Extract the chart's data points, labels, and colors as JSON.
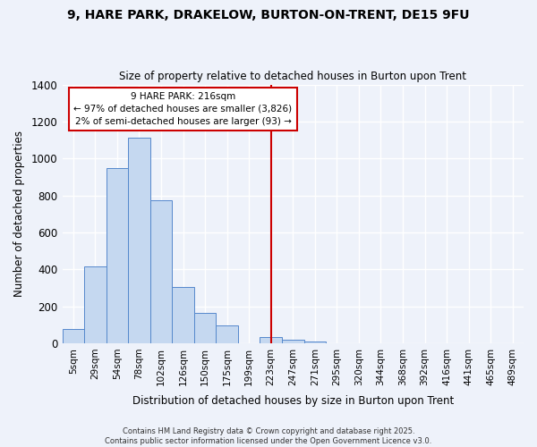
{
  "title_line1": "9, HARE PARK, DRAKELOW, BURTON-ON-TRENT, DE15 9FU",
  "title_line2": "Size of property relative to detached houses in Burton upon Trent",
  "xlabel": "Distribution of detached houses by size in Burton upon Trent",
  "ylabel": "Number of detached properties",
  "categories": [
    "5sqm",
    "29sqm",
    "54sqm",
    "78sqm",
    "102sqm",
    "126sqm",
    "150sqm",
    "175sqm",
    "199sqm",
    "223sqm",
    "247sqm",
    "271sqm",
    "295sqm",
    "320sqm",
    "344sqm",
    "368sqm",
    "392sqm",
    "416sqm",
    "441sqm",
    "465sqm",
    "489sqm"
  ],
  "values": [
    75,
    415,
    950,
    1110,
    775,
    305,
    165,
    95,
    0,
    35,
    20,
    10,
    0,
    0,
    0,
    0,
    0,
    0,
    0,
    0,
    0
  ],
  "bar_color": "#c5d8f0",
  "bar_edge_color": "#5588cc",
  "background_color": "#eef2fa",
  "grid_color": "#ffffff",
  "annotation_line1": "9 HARE PARK: 216sqm",
  "annotation_line2": "← 97% of detached houses are smaller (3,826)",
  "annotation_line3": "2% of semi-detached houses are larger (93) →",
  "vline_x_index": 9.0,
  "vline_color": "#cc0000",
  "annotation_box_facecolor": "#ffffff",
  "annotation_box_edgecolor": "#cc0000",
  "ylim": [
    0,
    1400
  ],
  "yticks": [
    0,
    200,
    400,
    600,
    800,
    1000,
    1200,
    1400
  ],
  "footer_line1": "Contains HM Land Registry data © Crown copyright and database right 2025.",
  "footer_line2": "Contains public sector information licensed under the Open Government Licence v3.0."
}
